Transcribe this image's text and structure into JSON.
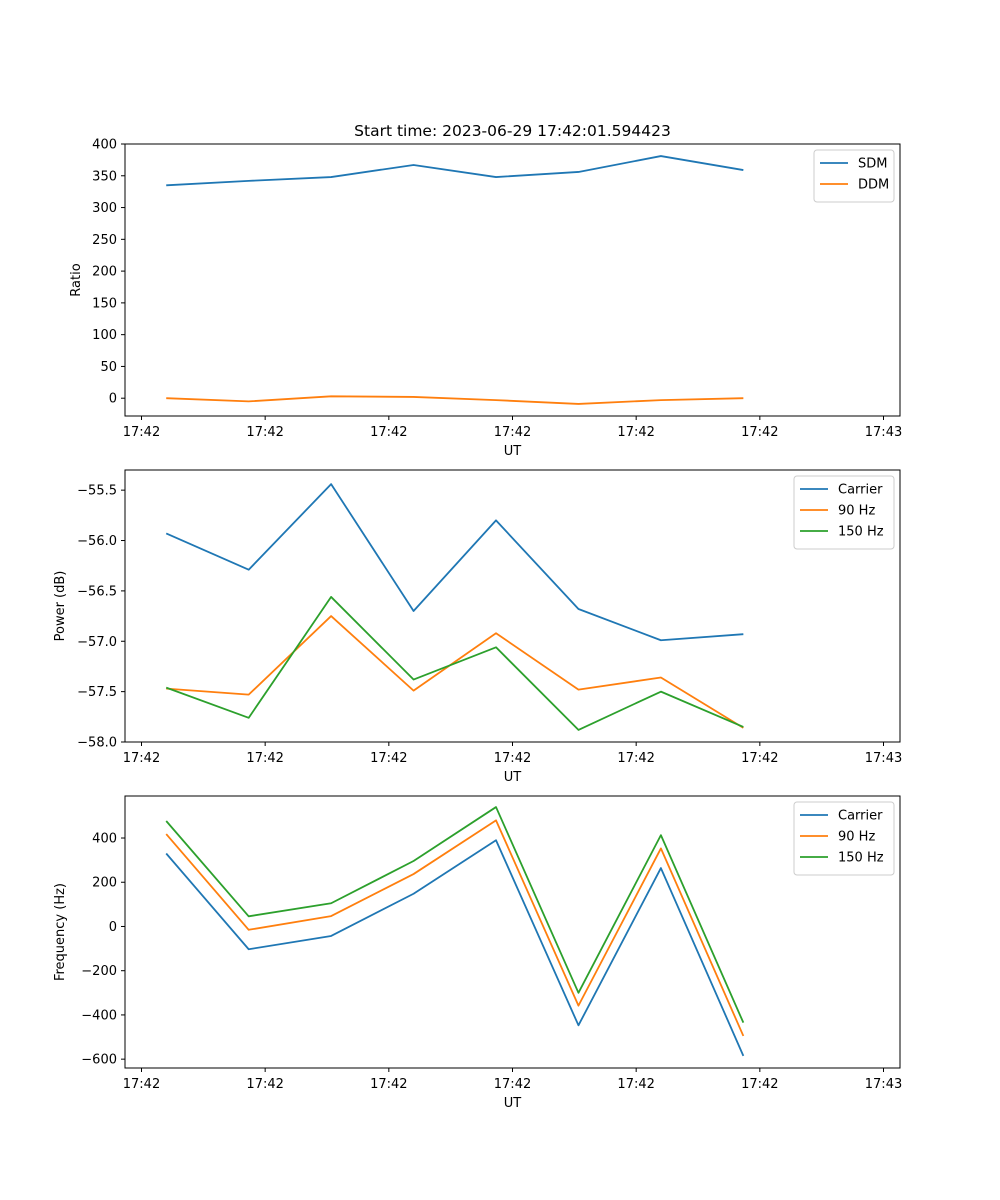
{
  "figure_title": "Start time: 2023-06-29 17:42:01.594423",
  "chart_data": [
    {
      "type": "line",
      "title": "Start time: 2023-06-29 17:42:01.594423",
      "xlabel": "UT",
      "ylabel": "Ratio",
      "x_tick_labels": [
        "17:42",
        "17:42",
        "17:42",
        "17:42",
        "17:42",
        "17:42",
        "17:43"
      ],
      "xlim": [
        -0.5,
        8.9
      ],
      "ylim": [
        -28,
        400
      ],
      "y_ticks": [
        0,
        50,
        100,
        150,
        200,
        250,
        300,
        350,
        400
      ],
      "legend": "top-right",
      "colors": [
        "#1f77b4",
        "#ff7f0e"
      ],
      "series": [
        {
          "name": "SDM",
          "x": [
            0,
            1,
            2,
            3,
            4,
            5,
            6,
            7
          ],
          "values": [
            335,
            342,
            348,
            367,
            348,
            356,
            381,
            359
          ]
        },
        {
          "name": "DDM",
          "x": [
            0,
            1,
            2,
            3,
            4,
            5,
            6,
            7
          ],
          "values": [
            0,
            -5,
            3,
            2,
            -3,
            -9,
            -3,
            0
          ]
        }
      ]
    },
    {
      "type": "line",
      "xlabel": "UT",
      "ylabel": "Power (dB)",
      "x_tick_labels": [
        "17:42",
        "17:42",
        "17:42",
        "17:42",
        "17:42",
        "17:42",
        "17:43"
      ],
      "xlim": [
        -0.5,
        8.9
      ],
      "ylim": [
        -58.0,
        -55.3
      ],
      "y_ticks": [
        -58.0,
        -57.5,
        -57.0,
        -56.5,
        -56.0,
        -55.5
      ],
      "y_tick_labels": [
        "−58.0",
        "−57.5",
        "−57.0",
        "−56.5",
        "−56.0",
        "−55.5"
      ],
      "legend": "top-right",
      "colors": [
        "#1f77b4",
        "#ff7f0e",
        "#2ca02c"
      ],
      "series": [
        {
          "name": "Carrier",
          "x": [
            0,
            1,
            2,
            3,
            4,
            5,
            6,
            7
          ],
          "values": [
            -55.93,
            -56.29,
            -55.44,
            -56.7,
            -55.8,
            -56.68,
            -56.99,
            -56.93
          ]
        },
        {
          "name": "90 Hz",
          "x": [
            0,
            1,
            2,
            3,
            4,
            5,
            6,
            7
          ],
          "values": [
            -57.47,
            -57.53,
            -56.75,
            -57.49,
            -56.92,
            -57.48,
            -57.36,
            -57.86
          ]
        },
        {
          "name": "150 Hz",
          "x": [
            0,
            1,
            2,
            3,
            4,
            5,
            6,
            7
          ],
          "values": [
            -57.46,
            -57.76,
            -56.56,
            -57.38,
            -57.06,
            -57.88,
            -57.5,
            -57.85
          ]
        }
      ]
    },
    {
      "type": "line",
      "xlabel": "UT",
      "ylabel": "Frequency (Hz)",
      "x_tick_labels": [
        "17:42",
        "17:42",
        "17:42",
        "17:42",
        "17:42",
        "17:42",
        "17:43"
      ],
      "xlim": [
        -0.5,
        8.9
      ],
      "ylim": [
        -640,
        590
      ],
      "y_ticks": [
        -600,
        -400,
        -200,
        0,
        200,
        400
      ],
      "y_tick_labels": [
        "−600",
        "−400",
        "−200",
        "0",
        "200",
        "400"
      ],
      "legend": "top-right",
      "colors": [
        "#1f77b4",
        "#ff7f0e",
        "#2ca02c"
      ],
      "series": [
        {
          "name": "Carrier",
          "x": [
            0,
            1,
            2,
            3,
            4,
            5,
            6,
            7
          ],
          "values": [
            330,
            -103,
            -43,
            148,
            390,
            -447,
            264,
            -585
          ]
        },
        {
          "name": "90 Hz",
          "x": [
            0,
            1,
            2,
            3,
            4,
            5,
            6,
            7
          ],
          "values": [
            418,
            -15,
            47,
            237,
            480,
            -358,
            353,
            -495
          ]
        },
        {
          "name": "150 Hz",
          "x": [
            0,
            1,
            2,
            3,
            4,
            5,
            6,
            7
          ],
          "values": [
            477,
            46,
            105,
            296,
            540,
            -300,
            413,
            -435
          ]
        }
      ]
    }
  ]
}
